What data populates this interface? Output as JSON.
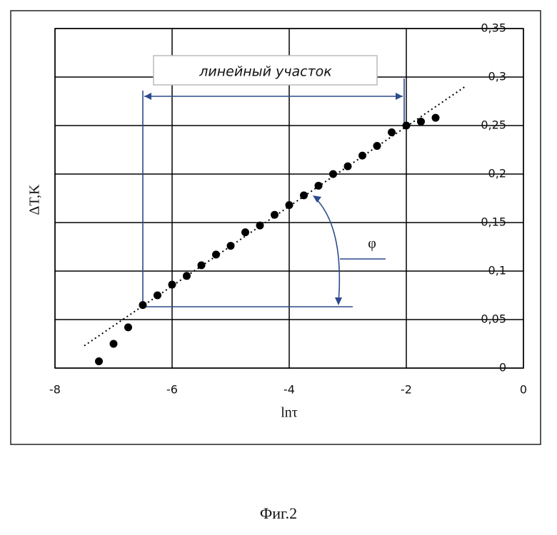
{
  "chart_data": {
    "type": "scatter",
    "x_label": "lnτ",
    "y_label": "ΔT,K",
    "annotation": "линейный участок",
    "angle_label": "φ",
    "caption": "Фиг.2",
    "x": [
      -7.25,
      -7.0,
      -6.75,
      -6.5,
      -6.25,
      -6.0,
      -5.75,
      -5.5,
      -5.25,
      -5.0,
      -4.75,
      -4.5,
      -4.25,
      -4.0,
      -3.75,
      -3.5,
      -3.25,
      -3.0,
      -2.75,
      -2.5,
      -2.25,
      -2.0,
      -1.75,
      -1.5
    ],
    "values": [
      0.007,
      0.025,
      0.042,
      0.065,
      0.075,
      0.086,
      0.095,
      0.106,
      0.117,
      0.126,
      0.14,
      0.147,
      0.158,
      0.168,
      0.178,
      0.188,
      0.2,
      0.208,
      0.219,
      0.229,
      0.243,
      0.25,
      0.254,
      0.258
    ],
    "color": "#000000",
    "trend_line": {
      "x": [
        -7.5,
        -1.0
      ],
      "values": [
        0.023,
        0.29
      ]
    },
    "xlim": [
      -8,
      0
    ],
    "xticks": [
      -8,
      -6,
      -4,
      -2,
      0
    ],
    "ylim": [
      0,
      0.35
    ],
    "yticks": [
      0,
      {
        "value": 0.05,
        "label": "0,05"
      },
      {
        "value": 0.1,
        "label": "0,1"
      },
      {
        "value": 0.15,
        "label": "0,15"
      },
      {
        "value": 0.2,
        "label": "0,2"
      },
      {
        "value": 0.25,
        "label": "0,25"
      },
      {
        "value": 0.3,
        "label": "0,3"
      },
      {
        "value": 0.35,
        "label": "0,35"
      }
    ],
    "grid": true
  }
}
